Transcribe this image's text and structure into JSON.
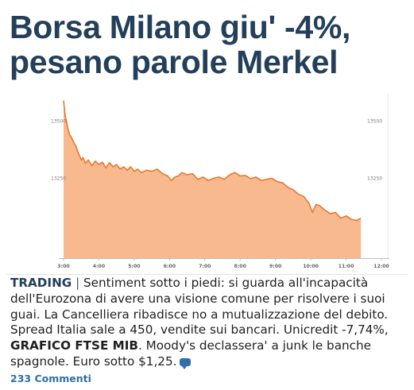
{
  "article": {
    "headline_line1": "Borsa Milano giu' -4%,",
    "headline_line2": "pesano parole Merkel",
    "kicker": "TRADING",
    "separator": "|",
    "body_part1": " Sentiment sotto i piedi: si guarda all'incapacità dell'Eurozona di avere una visione comune per risolvere i suoi guai. La Cancelliera ribadisce no a mutualizzazione del debito. Spread Italia sale a 450, vendite sui bancari. Unicredit -7,74%, ",
    "chart_link": "GRAFICO FTSE MIB",
    "body_part2": ". Moody's declassera' a junk le banche spagnole. Euro sotto $1,25.",
    "comments": "233 Commenti"
  },
  "colors": {
    "headline": "#233f5a",
    "area_fill": "#f9b98f",
    "line": "#e8782e",
    "link": "#2f6fa8"
  },
  "icons": {
    "comment": "comment-bubble-icon"
  },
  "chart_data": {
    "type": "area",
    "x_ticks": [
      "3:00",
      "4:00",
      "5:00",
      "6:00",
      "7:00",
      "8:00",
      "9:00",
      "10:00",
      "11:00",
      "12:00"
    ],
    "y_ticks_left": [
      "13500",
      "13250"
    ],
    "y_ticks_right": [
      "13500",
      "13250"
    ],
    "y_tick_values": [
      13500,
      13250
    ],
    "ylim": [
      12900,
      13620
    ],
    "xlim": [
      3.0,
      12.0
    ],
    "grid": false,
    "series": [
      {
        "x": [
          3.0,
          3.02,
          3.05,
          3.08,
          3.12,
          3.17,
          3.22,
          3.28,
          3.35,
          3.42,
          3.5,
          3.55,
          3.62,
          3.7,
          3.8,
          3.9,
          4.0,
          4.1,
          4.2,
          4.3,
          4.4,
          4.5,
          4.6,
          4.7,
          4.8,
          4.9,
          5.0,
          5.1,
          5.2,
          5.35,
          5.5,
          5.65,
          5.8,
          5.95,
          6.05,
          6.15,
          6.25,
          6.35,
          6.5,
          6.65,
          6.8,
          6.95,
          7.1,
          7.25,
          7.4,
          7.55,
          7.7,
          7.85,
          8.0,
          8.15,
          8.3,
          8.45,
          8.6,
          8.75,
          8.9,
          9.05,
          9.2,
          9.35,
          9.5,
          9.65,
          9.8,
          9.95,
          10.05,
          10.15,
          10.25,
          10.4,
          10.55,
          10.7,
          10.85,
          11.0,
          11.15,
          11.3,
          11.42
        ],
        "values": [
          13590,
          13560,
          13520,
          13500,
          13470,
          13440,
          13430,
          13410,
          13390,
          13360,
          13330,
          13340,
          13315,
          13330,
          13305,
          13325,
          13310,
          13320,
          13295,
          13318,
          13300,
          13310,
          13290,
          13300,
          13285,
          13300,
          13280,
          13290,
          13275,
          13285,
          13280,
          13290,
          13270,
          13260,
          13240,
          13255,
          13260,
          13275,
          13265,
          13270,
          13245,
          13255,
          13240,
          13250,
          13255,
          13245,
          13265,
          13275,
          13260,
          13262,
          13248,
          13255,
          13240,
          13245,
          13250,
          13235,
          13230,
          13210,
          13200,
          13180,
          13170,
          13140,
          13100,
          13135,
          13130,
          13110,
          13095,
          13100,
          13075,
          13085,
          13070,
          13065,
          13075
        ]
      }
    ]
  }
}
